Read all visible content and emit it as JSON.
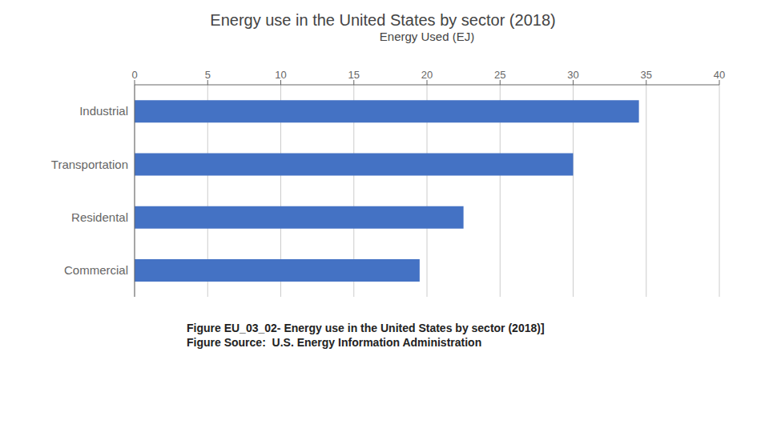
{
  "chart_data": {
    "type": "bar",
    "orientation": "horizontal",
    "title": "Energy use in the United States by sector (2018)",
    "x_label": "Energy Used (EJ)",
    "categories": [
      "Industrial",
      "Transportation",
      "Residental",
      "Commercial"
    ],
    "values": [
      34.5,
      30.0,
      22.5,
      19.5
    ],
    "color": "#4472c4",
    "xlim": [
      0,
      40
    ],
    "xticks": [
      0,
      5,
      10,
      15,
      20,
      25,
      30,
      35,
      40
    ],
    "grid": true,
    "annotations": [
      "Figure EU_03_02- Energy use in the United States by sector (2018)]",
      "Figure Source:  U.S. Energy Information Administration"
    ]
  }
}
